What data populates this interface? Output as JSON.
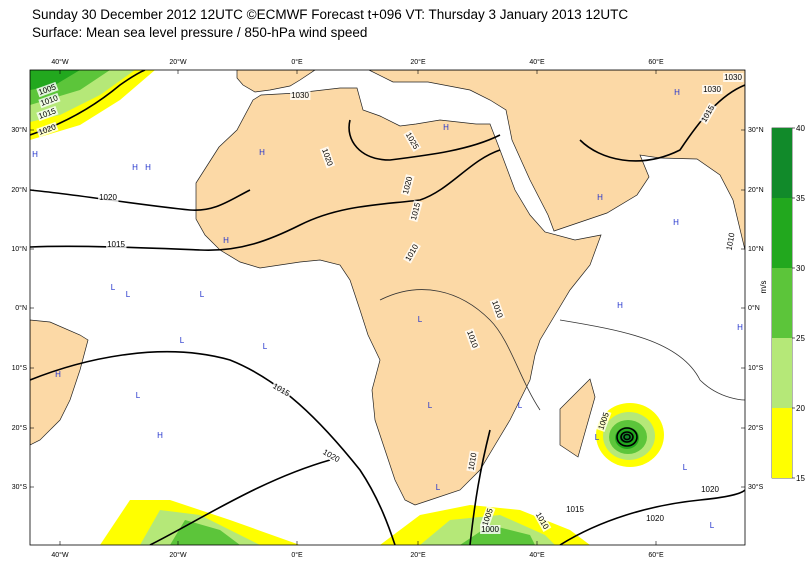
{
  "header": {
    "line1": "Sunday 30 December 2012 12UTC ©ECMWF Forecast t+096 VT: Thursday 3 January 2013 12UTC",
    "line2": "Surface: Mean sea level pressure / 850-hPa wind speed"
  },
  "longitude_labels": [
    "40°W",
    "20°W",
    "0°E",
    "20°E",
    "40°E",
    "60°E"
  ],
  "latitude_labels": [
    "30°N",
    "20°N",
    "10°N",
    "0°N",
    "10°S",
    "20°S",
    "30°S"
  ],
  "colorbar": {
    "unit": "m/s",
    "ticks": [
      15,
      20,
      25,
      30,
      35,
      40
    ],
    "colors": [
      "#ffff00",
      "#b5e878",
      "#5cc53a",
      "#22a81e",
      "#118a2a"
    ]
  },
  "isobar_labels": [
    1005,
    1010,
    1015,
    1020,
    1030,
    1020,
    1025,
    1020,
    1015,
    1010,
    1020,
    1015,
    1015,
    1020,
    1010,
    1010,
    1010,
    1005,
    1000,
    1010,
    1015,
    1005,
    1020,
    1020,
    1030,
    1030,
    1015,
    1010
  ],
  "pressure_centres": [
    "H",
    "H",
    "H",
    "H",
    "H",
    "H",
    "H",
    "H",
    "L",
    "L",
    "L",
    "L",
    "L",
    "L",
    "H",
    "H",
    "L",
    "L",
    "L",
    "H",
    "H",
    "L",
    "L",
    "H",
    "L",
    "L"
  ]
}
